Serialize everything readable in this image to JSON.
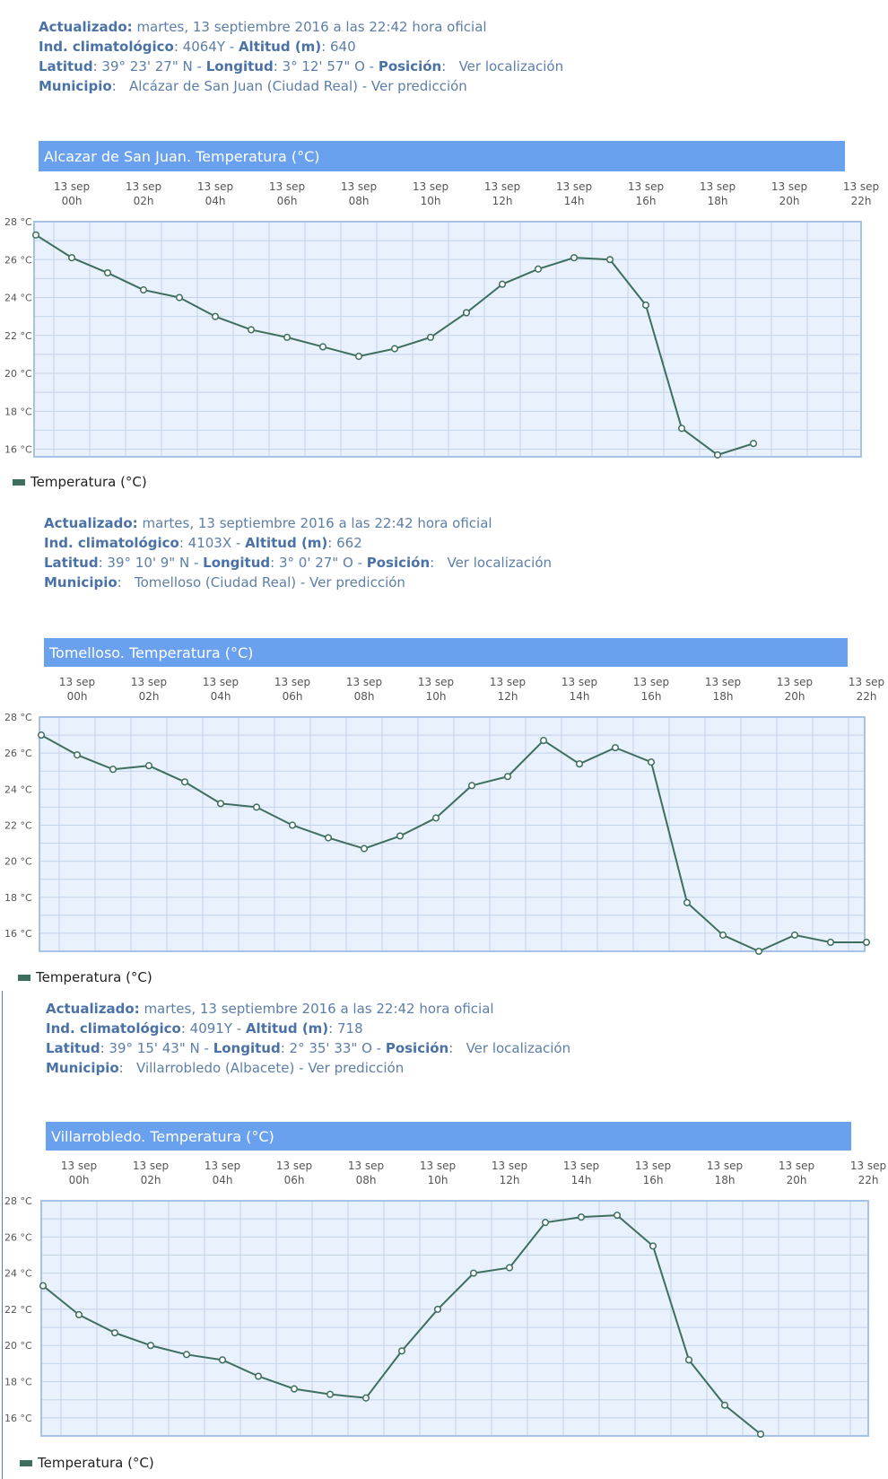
{
  "stations": [
    {
      "info": {
        "actualizado_label": "Actualizado:",
        "actualizado_value": "martes, 13 septiembre 2016 a las 22:42 hora oficial",
        "ind_label": "Ind. climatológico",
        "ind_value": ": 4064Y - ",
        "altitud_label": "Altitud (m)",
        "altitud_value": ": 640",
        "latitud_label": "Latitud",
        "latitud_value": ": 39° 23' 27\" N - ",
        "longitud_label": "Longitud",
        "longitud_value": ": 3° 12' 57\" O - ",
        "posicion_label": "Posición",
        "posicion_value": ":   Ver localización",
        "municipio_label": "Municipio",
        "municipio_value": ":   Alcázar de San Juan (Ciudad Real) - Ver predicción"
      },
      "legend": "Temperatura (°C)"
    },
    {
      "info": {
        "actualizado_label": "Actualizado:",
        "actualizado_value": "martes, 13 septiembre 2016 a las 22:42 hora oficial",
        "ind_label": "Ind. climatológico",
        "ind_value": ": 4103X - ",
        "altitud_label": "Altitud (m)",
        "altitud_value": ": 662",
        "latitud_label": "Latitud",
        "latitud_value": ": 39° 10' 9\" N - ",
        "longitud_label": "Longitud",
        "longitud_value": ": 3° 0' 27\" O - ",
        "posicion_label": "Posición",
        "posicion_value": ":   Ver localización",
        "municipio_label": "Municipio",
        "municipio_value": ":   Tomelloso (Ciudad Real) - Ver predicción"
      },
      "legend": "Temperatura (°C)"
    },
    {
      "info": {
        "actualizado_label": "Actualizado:",
        "actualizado_value": "martes, 13 septiembre 2016 a las 22:42 hora oficial",
        "ind_label": "Ind. climatológico",
        "ind_value": ": 4091Y - ",
        "altitud_label": "Altitud (m)",
        "altitud_value": ": 718",
        "latitud_label": "Latitud",
        "latitud_value": ": 39° 15' 43\" N - ",
        "longitud_label": "Longitud",
        "longitud_value": ": 2° 35' 33\" O - ",
        "posicion_label": "Posición",
        "posicion_value": ":   Ver localización",
        "municipio_label": "Municipio",
        "municipio_value": ":   Villarrobledo (Albacete) - Ver predicción"
      },
      "legend": "Temperatura (°C)"
    }
  ],
  "colors": {
    "title_bar": "#6aa1ee",
    "plot_bg": "#e8f1fc",
    "plot_border": "#a6c2e6",
    "grid": "#c3d4ea",
    "line": "#3e6e5e",
    "label": "#555555"
  },
  "chart_data": [
    {
      "type": "line",
      "title": "Alcazar de San Juan. Temperatura (°C)",
      "x_ticks": [
        "13 sep|00h",
        "13 sep|02h",
        "13 sep|04h",
        "13 sep|06h",
        "13 sep|08h",
        "13 sep|10h",
        "13 sep|12h",
        "13 sep|14h",
        "13 sep|16h",
        "13 sep|18h",
        "13 sep|20h",
        "13 sep|22h"
      ],
      "y_ticks": [
        "28 °C",
        "26 °C",
        "24 °C",
        "22 °C",
        "20 °C",
        "18 °C",
        "16 °C"
      ],
      "ylim": [
        15.6,
        28
      ],
      "x_hours": [
        -1,
        0,
        1,
        2,
        3,
        4,
        5,
        6,
        7,
        8,
        9,
        10,
        11,
        12,
        13,
        14,
        15,
        16,
        17,
        18,
        19
      ],
      "series": [
        {
          "name": "Temperatura (°C)",
          "values": [
            27.3,
            26.1,
            25.3,
            24.4,
            24.0,
            23.0,
            22.3,
            21.9,
            21.4,
            20.9,
            21.3,
            21.9,
            23.2,
            24.7,
            25.5,
            26.1,
            26.0,
            23.6,
            17.1,
            15.7,
            16.3
          ]
        }
      ]
    },
    {
      "type": "line",
      "title": "Tomelloso. Temperatura (°C)",
      "x_ticks": [
        "13 sep|00h",
        "13 sep|02h",
        "13 sep|04h",
        "13 sep|06h",
        "13 sep|08h",
        "13 sep|10h",
        "13 sep|12h",
        "13 sep|14h",
        "13 sep|16h",
        "13 sep|18h",
        "13 sep|20h",
        "13 sep|22h"
      ],
      "y_ticks": [
        "28 °C",
        "26 °C",
        "24 °C",
        "22 °C",
        "20 °C",
        "18 °C",
        "16 °C"
      ],
      "ylim": [
        15,
        28
      ],
      "x_hours": [
        -1,
        0,
        1,
        2,
        3,
        4,
        5,
        6,
        7,
        8,
        9,
        10,
        11,
        12,
        13,
        14,
        15,
        16,
        17,
        18,
        19,
        20,
        21,
        22
      ],
      "series": [
        {
          "name": "Temperatura (°C)",
          "values": [
            27.0,
            25.9,
            25.1,
            25.3,
            24.4,
            23.2,
            23.0,
            22.0,
            21.3,
            20.7,
            21.4,
            22.4,
            24.2,
            24.7,
            26.7,
            25.4,
            26.3,
            25.5,
            17.7,
            15.9,
            15.0,
            15.9,
            15.5,
            15.5
          ]
        }
      ]
    },
    {
      "type": "line",
      "title": "Villarrobledo. Temperatura (°C)",
      "x_ticks": [
        "13 sep|00h",
        "13 sep|02h",
        "13 sep|04h",
        "13 sep|06h",
        "13 sep|08h",
        "13 sep|10h",
        "13 sep|12h",
        "13 sep|14h",
        "13 sep|16h",
        "13 sep|18h",
        "13 sep|20h",
        "13 sep|22h"
      ],
      "y_ticks": [
        "28 °C",
        "26 °C",
        "24 °C",
        "22 °C",
        "20 °C",
        "18 °C",
        "16 °C"
      ],
      "ylim": [
        15,
        28
      ],
      "x_hours": [
        -1,
        0,
        1,
        2,
        3,
        4,
        5,
        6,
        7,
        8,
        9,
        10,
        11,
        12,
        13,
        14,
        15,
        16,
        17,
        18,
        19
      ],
      "series": [
        {
          "name": "Temperatura (°C)",
          "values": [
            23.3,
            21.7,
            20.7,
            20.0,
            19.5,
            19.2,
            18.3,
            17.6,
            17.3,
            17.1,
            19.7,
            22.0,
            24.0,
            24.3,
            26.8,
            27.1,
            27.2,
            25.5,
            19.2,
            16.7,
            15.1
          ]
        }
      ]
    }
  ]
}
